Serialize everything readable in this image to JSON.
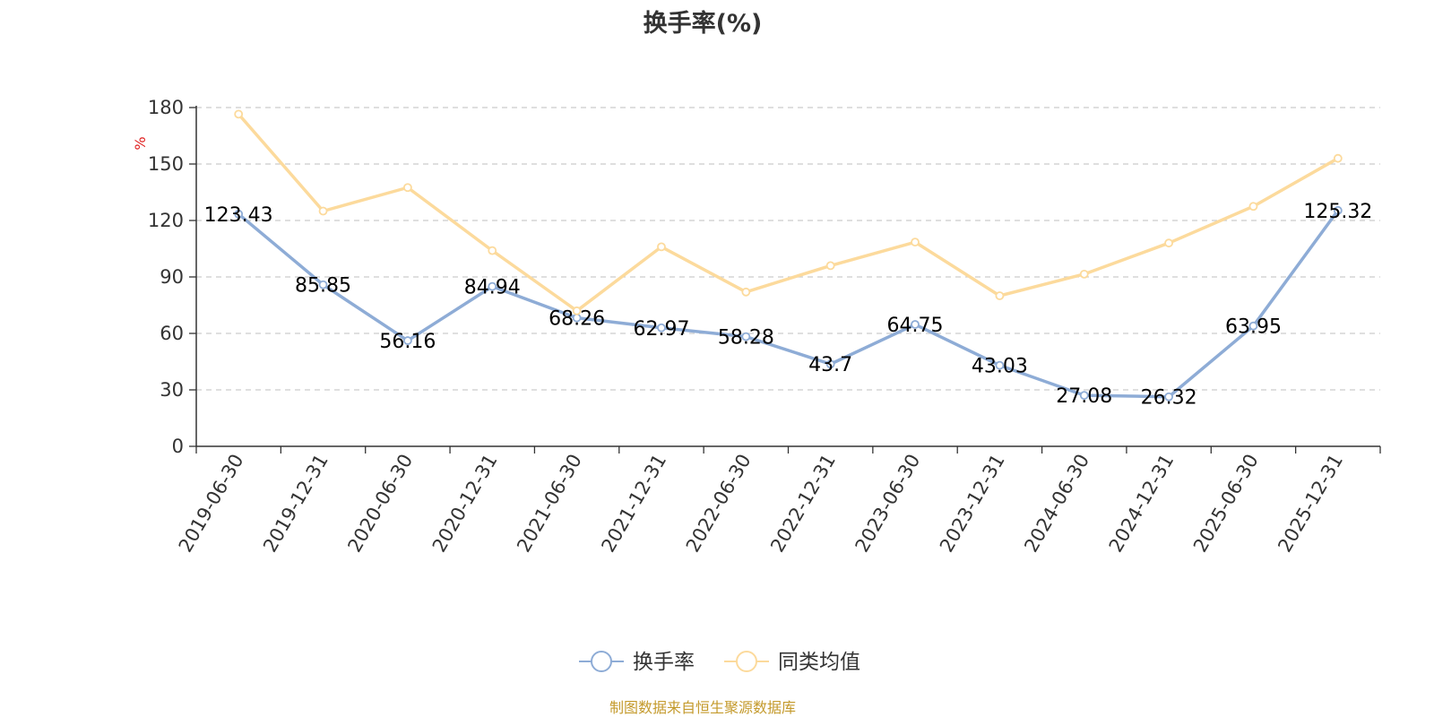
{
  "chart_data": {
    "type": "line",
    "title": "换手率(%)",
    "ylabel": "%",
    "xlabel": "",
    "ylim": [
      0,
      180
    ],
    "yticks": [
      0,
      30,
      60,
      90,
      120,
      150,
      180
    ],
    "grid": true,
    "legend_position": "bottom-center",
    "categories": [
      "2019-06-30",
      "2019-12-31",
      "2020-06-30",
      "2020-12-31",
      "2021-06-30",
      "2021-12-31",
      "2022-06-30",
      "2022-12-31",
      "2023-06-30",
      "2023-12-31",
      "2024-06-30",
      "2024-12-31",
      "2025-06-30",
      "2025-12-31"
    ],
    "series": [
      {
        "name": "换手率",
        "color": "#8eacd6",
        "show_labels": true,
        "labels": [
          "123.43",
          "85.85",
          "56.16",
          "84.94",
          "68.26",
          "62.97",
          "58.28",
          "43.7",
          "64.75",
          "43.03",
          "27.08",
          "26.32",
          "63.95",
          "125.32"
        ],
        "values": [
          123.43,
          85.85,
          56.16,
          84.94,
          68.26,
          62.97,
          58.28,
          43.7,
          64.75,
          43.03,
          27.08,
          26.32,
          63.95,
          125.32
        ]
      },
      {
        "name": "同类均值",
        "color": "#fcda9c",
        "show_labels": false,
        "values": [
          176.5,
          125.0,
          137.5,
          104.0,
          72.0,
          106.0,
          82.0,
          96.0,
          108.5,
          80.0,
          91.5,
          108.0,
          127.5,
          153.0
        ]
      }
    ]
  },
  "footer": {
    "source": "制图数据来自恒生聚源数据库"
  }
}
